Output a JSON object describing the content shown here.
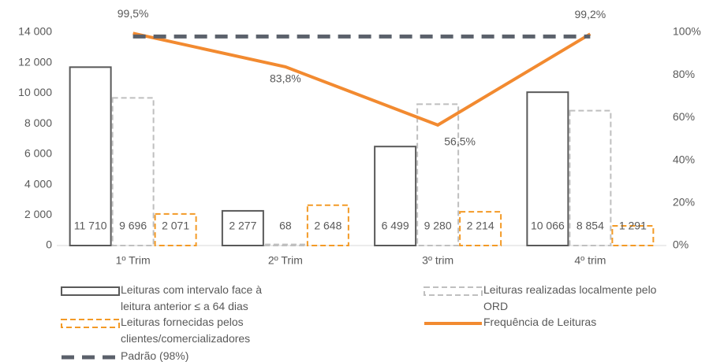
{
  "chart_data": {
    "type": "bar",
    "categories": [
      "1º Trim",
      "2º Trim",
      "3º trim",
      "4º trim"
    ],
    "ylim": [
      0,
      14000
    ],
    "yticks": [
      0,
      {
        "value": 2000,
        "label": "2 000"
      },
      {
        "value": 4000,
        "label": "4 000"
      },
      {
        "value": 6000,
        "label": "6 000"
      },
      {
        "value": 8000,
        "label": "8 000"
      },
      {
        "value": 10000,
        "label": "10 000"
      },
      {
        "value": 12000,
        "label": "12 000"
      },
      {
        "value": 14000,
        "label": "14 000"
      }
    ],
    "y2lim": [
      0,
      100
    ],
    "y2ticks": [
      {
        "value": 0,
        "label": "0%"
      },
      {
        "value": 20,
        "label": "20%"
      },
      {
        "value": 40,
        "label": "40%"
      },
      {
        "value": 60,
        "label": "60%"
      },
      {
        "value": 80,
        "label": "80%"
      },
      {
        "value": 100,
        "label": "100%"
      }
    ],
    "grid": false,
    "series": [
      {
        "name": "Leituras com intervalo face à leitura anterior ≤ a 64 dias",
        "type": "bar",
        "color": "#595959",
        "dashed": false,
        "values": [
          11710,
          2277,
          6499,
          10066
        ],
        "value_labels": [
          "11 710",
          "2 277",
          "6 499",
          "10 066"
        ]
      },
      {
        "name": "Leituras realizadas localmente pelo ORD",
        "type": "bar",
        "color": "#bfbfbf",
        "dashed": true,
        "values": [
          9696,
          68,
          9280,
          8854
        ],
        "value_labels": [
          "9 696",
          "68",
          "9 280",
          "8 854"
        ]
      },
      {
        "name": "Leituras fornecidas pelos clientes/comercializadores",
        "type": "bar",
        "color": "#f39a26",
        "dashed": true,
        "values": [
          2071,
          2648,
          2214,
          1291
        ],
        "value_labels": [
          "2 071",
          "2 648",
          "2 214",
          "1 291"
        ]
      },
      {
        "name": "Frequência de Leituras",
        "type": "line",
        "axis": "y2",
        "color": "#f28a30",
        "dashed": false,
        "values": [
          99.5,
          83.8,
          56.5,
          99.2
        ],
        "value_labels": [
          "99,5%",
          "83,8%",
          "56,5%",
          "99,2%"
        ]
      },
      {
        "name": "Padrão (98%)",
        "type": "line",
        "axis": "y2",
        "color": "#5b616b",
        "dashed": true,
        "values": [
          98,
          98,
          98,
          98
        ]
      }
    ]
  }
}
